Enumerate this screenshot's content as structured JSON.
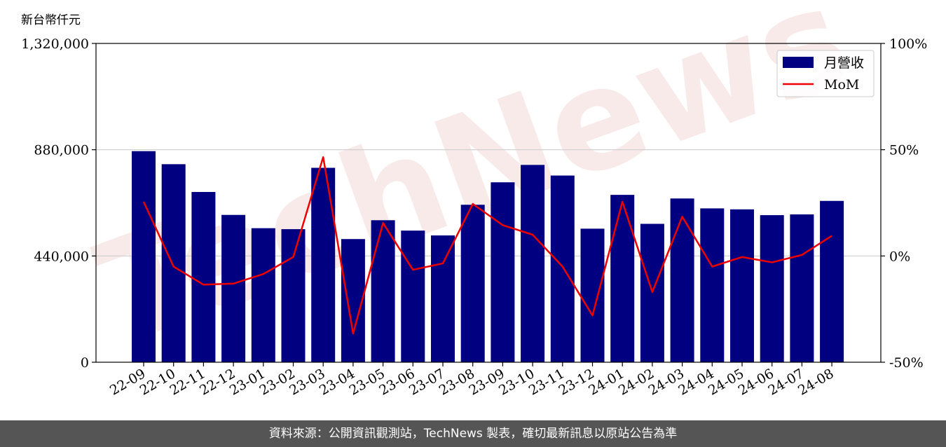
{
  "chart_data": {
    "type": "bar",
    "y_unit_label": "新台幣仟元",
    "categories": [
      "22-09",
      "22-10",
      "22-11",
      "22-12",
      "23-01",
      "23-02",
      "23-03",
      "23-04",
      "23-05",
      "23-06",
      "23-07",
      "23-08",
      "23-09",
      "23-10",
      "23-11",
      "23-12",
      "24-01",
      "24-02",
      "24-03",
      "24-04",
      "24-05",
      "24-06",
      "24-07",
      "24-08"
    ],
    "series": [
      {
        "name": "月營收",
        "type": "bar",
        "axis": "left",
        "color": "#000080",
        "values": [
          874000,
          820000,
          705000,
          610000,
          555000,
          551000,
          805000,
          510000,
          588000,
          545000,
          525000,
          652000,
          745000,
          817000,
          773000,
          553000,
          693000,
          573000,
          678000,
          637000,
          633000,
          609000,
          612000,
          668000
        ]
      },
      {
        "name": "MoM",
        "type": "line",
        "axis": "right",
        "color": "#ee0000",
        "values": [
          25.5,
          -5.0,
          -13.5,
          -13.0,
          -8.5,
          -0.5,
          46.5,
          -36.5,
          15.5,
          -6.5,
          -3.5,
          24.5,
          14.5,
          10.0,
          -5.0,
          -28.0,
          25.5,
          -17.0,
          18.5,
          -5.0,
          -0.5,
          -3.0,
          0.5,
          9.5
        ]
      }
    ],
    "y_left": {
      "min": 0,
      "max": 1320000,
      "ticks": [
        0,
        440000,
        880000,
        1320000
      ],
      "tick_labels": [
        "0",
        "440,000",
        "880,000",
        "1,320,000"
      ]
    },
    "y_right": {
      "min": -50,
      "max": 100,
      "ticks": [
        -50,
        0,
        50,
        100
      ],
      "tick_labels": [
        "-50%",
        "0%",
        "50%",
        "100%"
      ]
    },
    "grid": "horizontal",
    "legend_position": "top-right"
  },
  "watermark": "TechNews",
  "footer": {
    "source_text": "資料來源：公開資訊觀測站，TechNews 製表，確切最新訊息以原站公告為準"
  }
}
